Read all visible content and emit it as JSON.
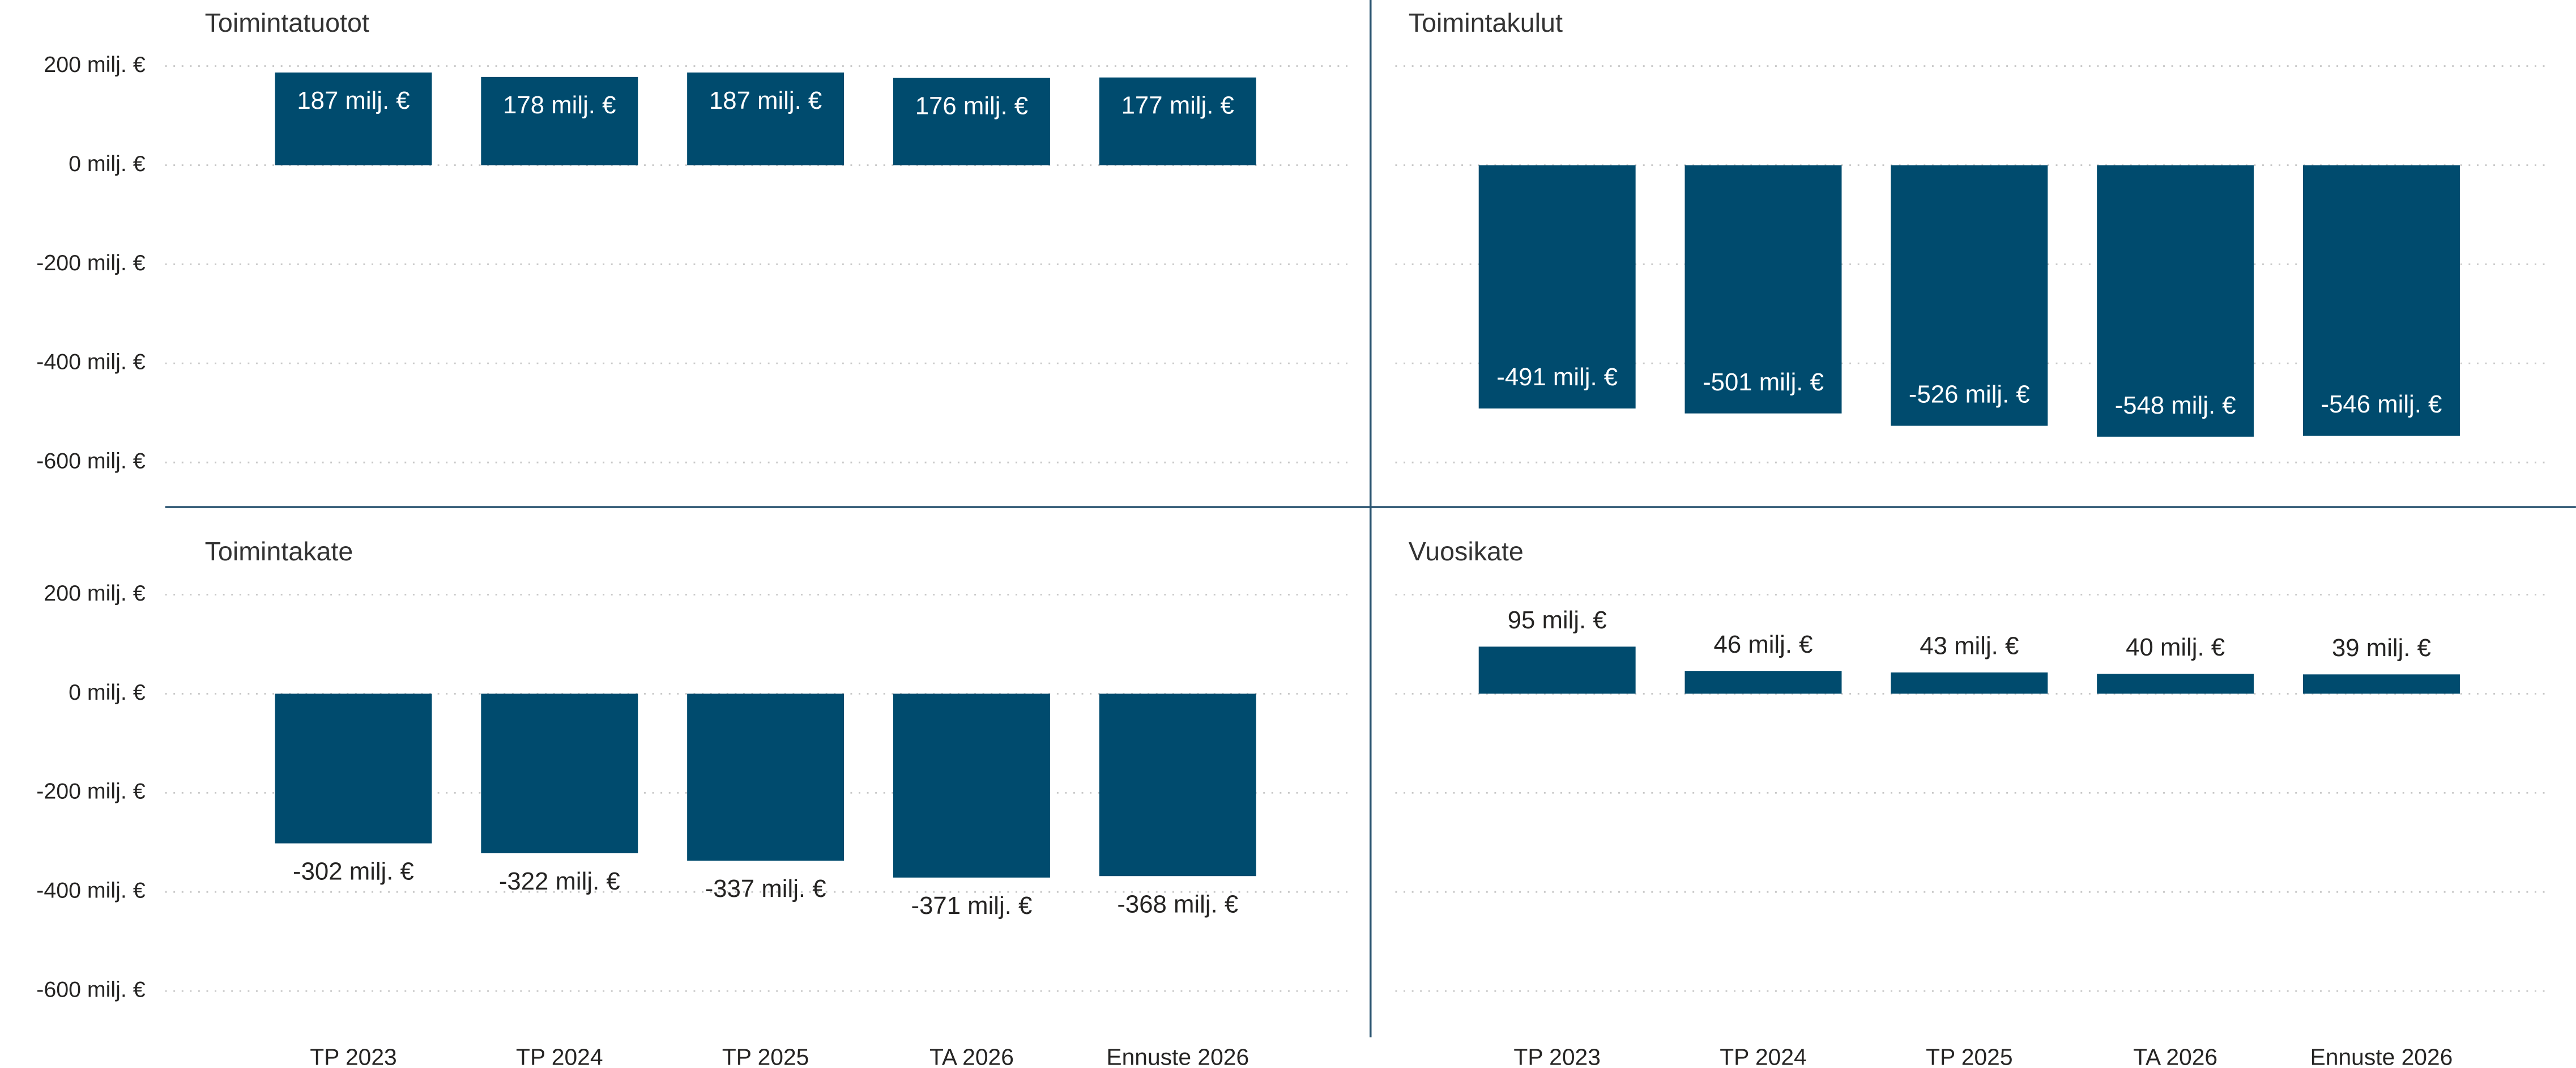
{
  "chart_data": [
    {
      "type": "bar",
      "title": "Toimintatuotot",
      "values": [
        187,
        178,
        187,
        176,
        177
      ],
      "value_labels": [
        "187 milj. €",
        "178 milj. €",
        "187 milj. €",
        "176 milj. €",
        "177 milj. €"
      ],
      "color": "#004b6e",
      "label_position": "inside",
      "grid": true,
      "ylim": [
        -650,
        250
      ],
      "yticks": [
        {
          "value": 200,
          "label": "200 milj. €"
        },
        {
          "value": 0,
          "label": "0 milj. €"
        },
        {
          "value": -200,
          "label": "-200 milj. €"
        },
        {
          "value": -400,
          "label": "-400 milj. €"
        },
        {
          "value": -600,
          "label": "-600 milj. €"
        }
      ]
    },
    {
      "type": "bar",
      "title": "Toimintakulut",
      "values": [
        -491,
        -501,
        -526,
        -548,
        -546
      ],
      "value_labels": [
        "-491 milj. €",
        "-501 milj. €",
        "-526 milj. €",
        "-548 milj. €",
        "-546 milj. €"
      ],
      "color": "#004b6e",
      "label_position": "inside",
      "grid": true,
      "ylim": [
        -650,
        250
      ],
      "yticks": [
        200,
        0,
        -200,
        -400,
        -600
      ]
    },
    {
      "type": "bar",
      "title": "Toimintakate",
      "categories": [
        "TP 2023",
        "TP 2024",
        "TP 2025",
        "TA 2026",
        "Ennuste 2026"
      ],
      "values": [
        -302,
        -322,
        -337,
        -371,
        -368
      ],
      "value_labels": [
        "-302 milj. €",
        "-322 milj. €",
        "-337 milj. €",
        "-371 milj. €",
        "-368 milj. €"
      ],
      "color": "#004b6e",
      "label_position": "outside",
      "grid": true,
      "ylim": [
        -680,
        250
      ],
      "yticks": [
        {
          "value": 200,
          "label": "200 milj. €"
        },
        {
          "value": 0,
          "label": "0 milj. €"
        },
        {
          "value": -200,
          "label": "-200 milj. €"
        },
        {
          "value": -400,
          "label": "-400 milj. €"
        },
        {
          "value": -600,
          "label": "-600 milj. €"
        }
      ]
    },
    {
      "type": "bar",
      "title": "Vuosikate",
      "categories": [
        "TP 2023",
        "TP 2024",
        "TP 2025",
        "TA 2026",
        "Ennuste 2026"
      ],
      "values": [
        95,
        46,
        43,
        40,
        39
      ],
      "value_labels": [
        "95 milj. €",
        "46 milj. €",
        "43 milj. €",
        "40 milj. €",
        "39 milj. €"
      ],
      "color": "#004b6e",
      "label_position": "outside",
      "grid": true,
      "ylim": [
        -680,
        250
      ],
      "yticks": [
        200,
        0,
        -200,
        -400,
        -600
      ]
    }
  ]
}
